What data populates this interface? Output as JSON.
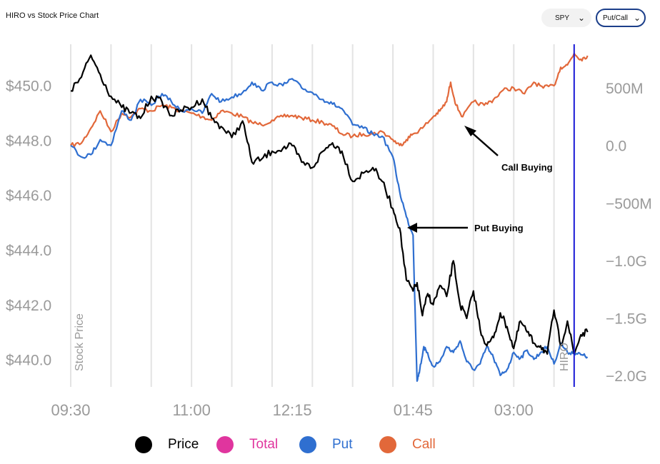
{
  "title": "HIRO vs Stock Price Chart",
  "controls": {
    "ticker": "SPY",
    "mode": "Put/Call"
  },
  "legend": [
    {
      "label": "Price",
      "color": "#000000"
    },
    {
      "label": "Total",
      "color": "#e0359e"
    },
    {
      "label": "Put",
      "color": "#2f6fd0"
    },
    {
      "label": "Call",
      "color": "#e2683a"
    }
  ],
  "annotations": {
    "call_buying": "Call Buying",
    "put_buying": "Put Buying"
  },
  "chart_data": {
    "type": "line",
    "x_ticks": [
      "09:30",
      "11:00",
      "12:15",
      "01:45",
      "03:00"
    ],
    "y_left_label": "Stock Price",
    "y_left_ticks": [
      "$450.0",
      "$448.0",
      "$446.0",
      "$444.0",
      "$442.0",
      "$440.0"
    ],
    "y_left_range": [
      439.0,
      451.5
    ],
    "y_right_label": "HIRO",
    "y_right_ticks": [
      "500M",
      "0.0",
      "−500M",
      "−1.0G",
      "−1.5G",
      "−2.0G"
    ],
    "y_right_range": [
      -2.1,
      0.88
    ],
    "right_axis_unit": "G",
    "x_range": [
      "09:30",
      "04:00"
    ],
    "current_time_marker": "03:45",
    "series": [
      {
        "name": "Price",
        "axis": "left",
        "color": "#000000",
        "x": [
          "09:30",
          "09:38",
          "09:45",
          "09:52",
          "10:00",
          "10:08",
          "10:15",
          "10:22",
          "10:30",
          "10:38",
          "10:45",
          "10:52",
          "11:00",
          "11:08",
          "11:15",
          "11:22",
          "11:30",
          "11:38",
          "11:45",
          "11:52",
          "12:00",
          "12:08",
          "12:15",
          "12:22",
          "12:30",
          "12:38",
          "12:45",
          "12:52",
          "01:00",
          "01:08",
          "01:15",
          "01:22",
          "01:30",
          "01:35",
          "01:40",
          "01:45",
          "01:48",
          "01:52",
          "01:56",
          "02:00",
          "02:05",
          "02:10",
          "02:15",
          "02:20",
          "02:25",
          "02:30",
          "02:35",
          "02:40",
          "02:45",
          "02:50",
          "02:55",
          "03:00",
          "03:05",
          "03:10",
          "03:15",
          "03:20",
          "03:25",
          "03:30",
          "03:35",
          "03:40",
          "03:45",
          "03:50",
          "03:55"
        ],
        "y": [
          449.8,
          450.3,
          451.1,
          450.4,
          449.6,
          449.2,
          449.0,
          448.8,
          449.6,
          449.4,
          448.9,
          449.1,
          449.2,
          449.5,
          448.8,
          448.5,
          448.1,
          448.7,
          447.2,
          447.3,
          447.6,
          447.7,
          447.8,
          447.2,
          447.0,
          447.6,
          447.9,
          447.6,
          446.5,
          446.8,
          447.0,
          446.5,
          445.5,
          444.8,
          442.9,
          442.5,
          442.8,
          441.6,
          442.4,
          442.0,
          442.7,
          442.3,
          443.6,
          442.0,
          441.5,
          442.5,
          441.1,
          440.5,
          440.8,
          441.7,
          441.2,
          440.4,
          441.4,
          441.0,
          440.6,
          440.5,
          440.2,
          441.8,
          440.5,
          441.4,
          440.2,
          440.9,
          441.0
        ]
      },
      {
        "name": "Put",
        "axis": "right",
        "color": "#2f6fd0",
        "x": [
          "09:30",
          "09:38",
          "09:45",
          "09:52",
          "10:00",
          "10:08",
          "10:15",
          "10:22",
          "10:30",
          "10:38",
          "10:45",
          "10:52",
          "11:00",
          "11:08",
          "11:15",
          "11:22",
          "11:30",
          "11:38",
          "11:45",
          "11:52",
          "12:00",
          "12:08",
          "12:15",
          "12:22",
          "12:30",
          "12:38",
          "12:45",
          "12:52",
          "01:00",
          "01:08",
          "01:15",
          "01:22",
          "01:30",
          "01:35",
          "01:40",
          "01:45",
          "01:48",
          "01:50",
          "01:53",
          "01:55",
          "02:00",
          "02:05",
          "02:10",
          "02:15",
          "02:20",
          "02:25",
          "02:30",
          "02:35",
          "02:40",
          "02:45",
          "02:50",
          "02:55",
          "03:00",
          "03:05",
          "03:10",
          "03:15",
          "03:20",
          "03:25",
          "03:30",
          "03:35",
          "03:40",
          "03:45",
          "03:50",
          "03:55"
        ],
        "y": [
          0.0,
          -0.1,
          -0.08,
          0.05,
          0.0,
          0.3,
          0.22,
          0.4,
          0.35,
          0.45,
          0.38,
          0.3,
          0.32,
          0.28,
          0.45,
          0.38,
          0.42,
          0.46,
          0.55,
          0.48,
          0.55,
          0.52,
          0.58,
          0.5,
          0.46,
          0.4,
          0.36,
          0.32,
          0.18,
          0.15,
          0.1,
          0.08,
          -0.1,
          -0.4,
          -0.62,
          -0.78,
          -2.05,
          -1.95,
          -1.75,
          -1.8,
          -1.92,
          -1.88,
          -1.75,
          -1.8,
          -1.7,
          -1.88,
          -1.95,
          -1.9,
          -1.75,
          -1.85,
          -2.0,
          -1.95,
          -1.8,
          -1.85,
          -1.78,
          -1.86,
          -1.8,
          -1.75,
          -1.9,
          -1.72,
          -1.8,
          -1.8,
          -1.82,
          -1.84
        ]
      },
      {
        "name": "Call",
        "axis": "right",
        "color": "#e2683a",
        "x": [
          "09:30",
          "09:38",
          "09:45",
          "09:52",
          "10:00",
          "10:08",
          "10:15",
          "10:22",
          "10:30",
          "10:38",
          "10:45",
          "10:52",
          "11:00",
          "11:08",
          "11:15",
          "11:22",
          "11:30",
          "11:38",
          "11:45",
          "11:52",
          "12:00",
          "12:08",
          "12:15",
          "12:22",
          "12:30",
          "12:38",
          "12:45",
          "12:52",
          "01:00",
          "01:08",
          "01:15",
          "01:22",
          "01:30",
          "01:35",
          "01:40",
          "01:45",
          "01:52",
          "02:00",
          "02:05",
          "02:10",
          "02:13",
          "02:17",
          "02:22",
          "02:30",
          "02:38",
          "02:45",
          "02:52",
          "03:00",
          "03:08",
          "03:15",
          "03:22",
          "03:30",
          "03:35",
          "03:40",
          "03:45",
          "03:50",
          "03:55"
        ],
        "y": [
          0.0,
          0.02,
          0.15,
          0.3,
          0.12,
          0.28,
          0.25,
          0.32,
          0.3,
          0.35,
          0.33,
          0.3,
          0.28,
          0.25,
          0.22,
          0.3,
          0.28,
          0.25,
          0.2,
          0.18,
          0.22,
          0.25,
          0.26,
          0.24,
          0.22,
          0.2,
          0.17,
          0.1,
          0.08,
          0.1,
          0.1,
          0.12,
          0.05,
          0.0,
          0.05,
          0.1,
          0.15,
          0.25,
          0.3,
          0.38,
          0.55,
          0.35,
          0.25,
          0.38,
          0.35,
          0.4,
          0.48,
          0.5,
          0.45,
          0.55,
          0.5,
          0.52,
          0.68,
          0.7,
          0.8,
          0.75,
          0.78
        ]
      }
    ],
    "grid": "vertical"
  }
}
